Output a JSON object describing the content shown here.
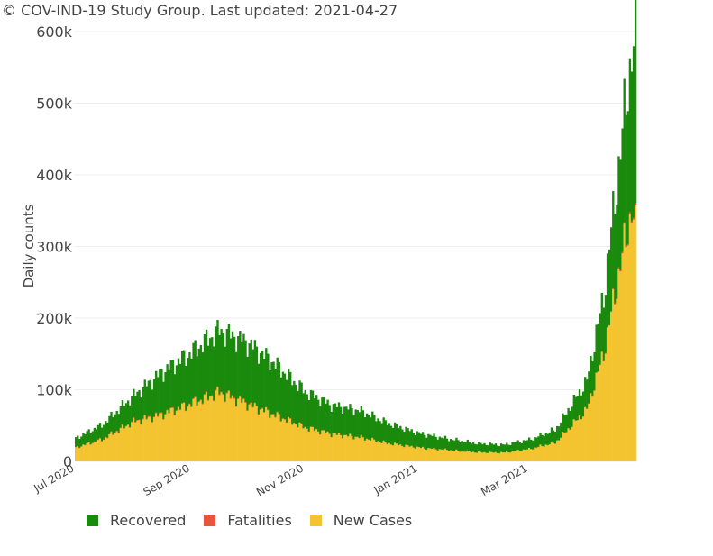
{
  "title": "© COV-IND-19 Study Group. Last updated: 2021-04-27",
  "chart_data": {
    "type": "bar",
    "stacked": true,
    "x_start": "2020-07-01",
    "x_end": "2021-04-27",
    "ylabel": "Daily counts",
    "ylim": [
      0,
      600000
    ],
    "y_ticks": [
      0,
      100000,
      200000,
      300000,
      400000,
      500000,
      600000
    ],
    "y_tick_labels": [
      "0",
      "100k",
      "200k",
      "300k",
      "400k",
      "500k",
      "600k"
    ],
    "x_ticks": [
      "2020-07-01",
      "2020-09-01",
      "2020-11-01",
      "2021-01-01",
      "2021-03-01"
    ],
    "x_tick_labels": [
      "Jul 2020",
      "Sep 2020",
      "Nov 2020",
      "Jan 2021",
      "Mar 2021"
    ],
    "grid": true,
    "legend_position": "bottom",
    "series": [
      {
        "name": "New Cases",
        "color": "#f4c430",
        "anchors": [
          [
            "2020-07-01",
            19000
          ],
          [
            "2020-07-15",
            30000
          ],
          [
            "2020-08-01",
            55000
          ],
          [
            "2020-08-15",
            64000
          ],
          [
            "2020-09-01",
            80000
          ],
          [
            "2020-09-16",
            96000
          ],
          [
            "2020-10-01",
            80000
          ],
          [
            "2020-10-15",
            65000
          ],
          [
            "2020-11-01",
            47000
          ],
          [
            "2020-11-15",
            38000
          ],
          [
            "2020-12-01",
            33000
          ],
          [
            "2020-12-15",
            25000
          ],
          [
            "2021-01-01",
            19000
          ],
          [
            "2021-01-15",
            16000
          ],
          [
            "2021-02-01",
            12500
          ],
          [
            "2021-02-15",
            12000
          ],
          [
            "2021-03-01",
            17000
          ],
          [
            "2021-03-15",
            26000
          ],
          [
            "2021-04-01",
            72000
          ],
          [
            "2021-04-10",
            150000
          ],
          [
            "2021-04-18",
            260000
          ],
          [
            "2021-04-25",
            350000
          ],
          [
            "2021-04-27",
            320000
          ]
        ]
      },
      {
        "name": "Fatalities",
        "color": "#e8553a",
        "anchors": [
          [
            "2020-07-01",
            450
          ],
          [
            "2020-08-01",
            850
          ],
          [
            "2020-09-01",
            1050
          ],
          [
            "2020-09-16",
            1150
          ],
          [
            "2020-10-15",
            800
          ],
          [
            "2020-11-15",
            500
          ],
          [
            "2020-12-15",
            350
          ],
          [
            "2021-01-15",
            180
          ],
          [
            "2021-02-15",
            100
          ],
          [
            "2021-03-15",
            150
          ],
          [
            "2021-04-01",
            450
          ],
          [
            "2021-04-15",
            1200
          ],
          [
            "2021-04-27",
            2800
          ]
        ]
      },
      {
        "name": "Recovered",
        "color": "#1a8a0c",
        "anchors": [
          [
            "2020-07-01",
            13000
          ],
          [
            "2020-07-15",
            20000
          ],
          [
            "2020-08-01",
            36000
          ],
          [
            "2020-08-15",
            57000
          ],
          [
            "2020-09-01",
            71000
          ],
          [
            "2020-09-16",
            86000
          ],
          [
            "2020-10-01",
            85000
          ],
          [
            "2020-10-15",
            72000
          ],
          [
            "2020-11-01",
            50000
          ],
          [
            "2020-11-15",
            40000
          ],
          [
            "2020-12-01",
            37000
          ],
          [
            "2020-12-15",
            28000
          ],
          [
            "2021-01-01",
            20000
          ],
          [
            "2021-01-15",
            16000
          ],
          [
            "2021-02-01",
            12500
          ],
          [
            "2021-02-15",
            11000
          ],
          [
            "2021-03-01",
            13000
          ],
          [
            "2021-03-15",
            18000
          ],
          [
            "2021-04-01",
            40000
          ],
          [
            "2021-04-10",
            80000
          ],
          [
            "2021-04-18",
            150000
          ],
          [
            "2021-04-25",
            220000
          ],
          [
            "2021-04-27",
            255000
          ]
        ]
      }
    ]
  },
  "legend": [
    {
      "label": "Recovered",
      "color": "#1a8a0c"
    },
    {
      "label": "Fatalities",
      "color": "#e8553a"
    },
    {
      "label": "New Cases",
      "color": "#f4c430"
    }
  ]
}
